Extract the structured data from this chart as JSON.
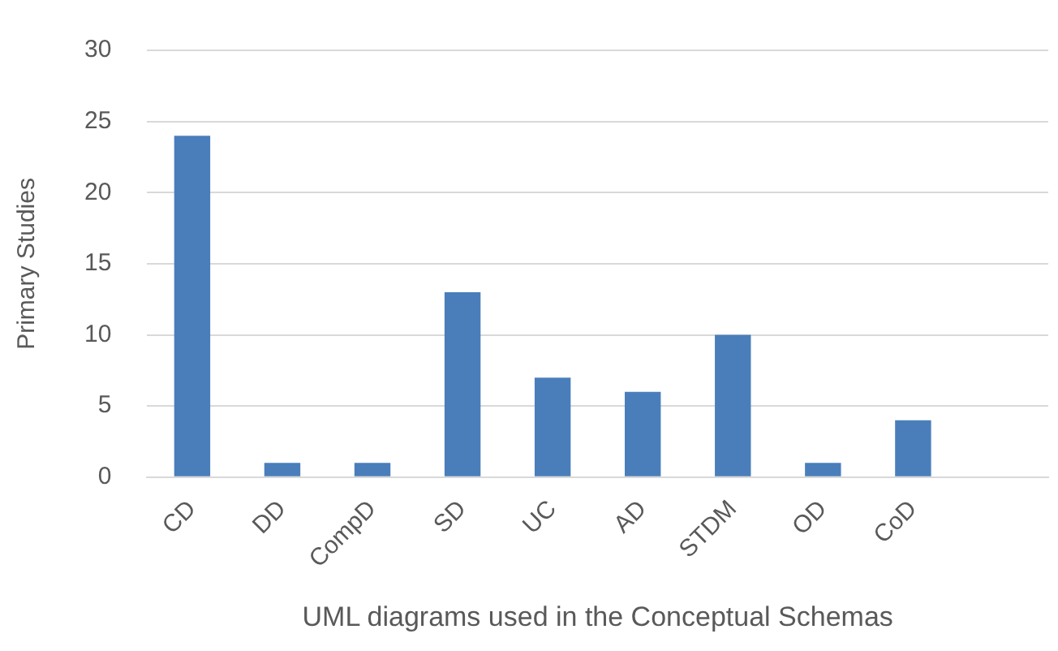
{
  "chart_data": {
    "type": "bar",
    "xlabel": "UML diagrams used in the Conceptual Schemas",
    "ylabel": "Primary Studies",
    "categories": [
      "CD",
      "DD",
      "CompD",
      "SD",
      "UC",
      "AD",
      "STDM",
      "OD",
      "CoD",
      null
    ],
    "values": [
      24,
      1,
      1,
      13,
      7,
      6,
      10,
      1,
      4,
      null
    ],
    "color": "#4a7ebb",
    "ylim": [
      0,
      30
    ],
    "yticks": [
      0,
      5,
      10,
      15,
      20,
      25,
      30
    ],
    "grid": "y",
    "legend": false
  }
}
